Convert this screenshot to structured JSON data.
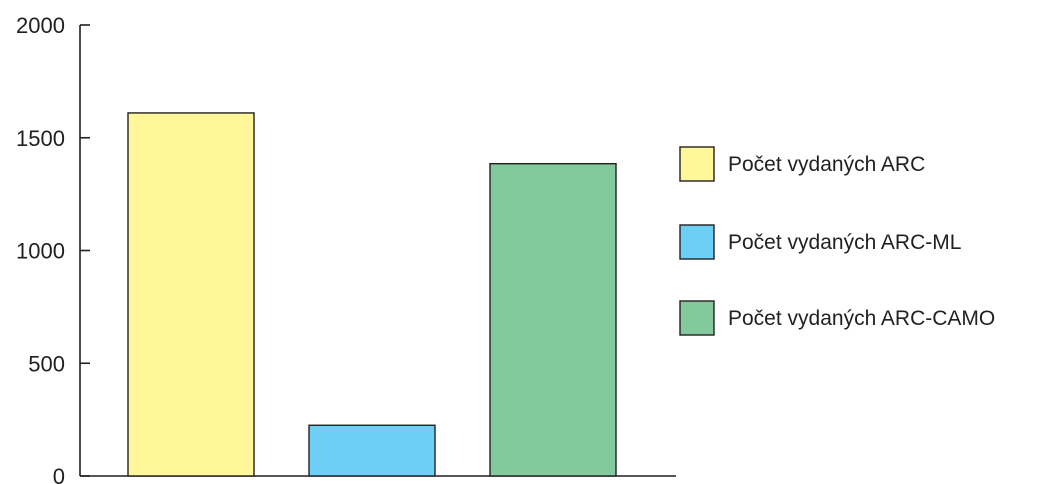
{
  "chart_data": {
    "type": "bar",
    "title": "",
    "xlabel": "",
    "ylabel": "",
    "categories": [],
    "series": [
      {
        "name": "Počet vydaných ARC",
        "color": "#fff799",
        "value": 1610
      },
      {
        "name": "Počet vydaných ARC-ML",
        "color": "#6dcff6",
        "value": 225
      },
      {
        "name": "Počet vydaných ARC-CAMO",
        "color": "#82ca9c",
        "value": 1385
      }
    ],
    "ylim": [
      0,
      2000
    ],
    "yticks": [
      0,
      500,
      1000,
      1500,
      2000
    ],
    "grid": false,
    "legend_position": "right"
  }
}
